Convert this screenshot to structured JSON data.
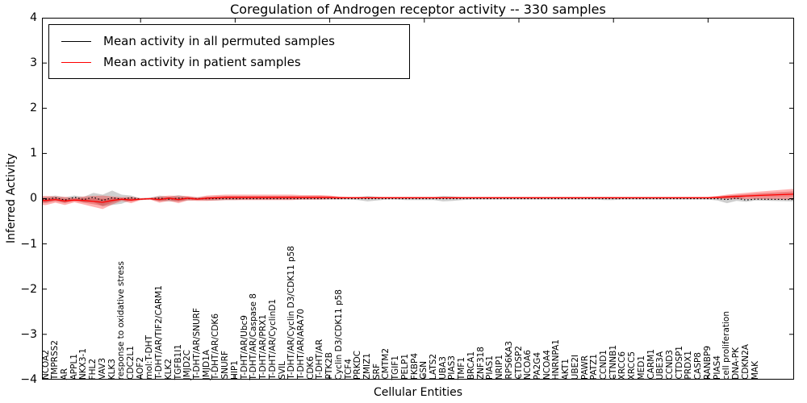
{
  "title": "Coregulation of Androgen receptor activity -- 330 samples",
  "legend": {
    "items": [
      {
        "label": "Mean activity in all permuted samples",
        "color": "#000000"
      },
      {
        "label": "Mean activity in patient samples",
        "color": "#ff0000"
      }
    ]
  },
  "yaxis": {
    "label": "Inferred Activity",
    "ticks": [
      {
        "v": 4,
        "label": "4"
      },
      {
        "v": 3,
        "label": "3"
      },
      {
        "v": 2,
        "label": "2"
      },
      {
        "v": 1,
        "label": "1"
      },
      {
        "v": 0,
        "label": "0"
      },
      {
        "v": -1,
        "label": "−1"
      },
      {
        "v": -2,
        "label": "−2"
      },
      {
        "v": -3,
        "label": "−3"
      },
      {
        "v": -4,
        "label": "−4"
      }
    ]
  },
  "xaxis": {
    "label": "Cellular Entities"
  },
  "colors": {
    "permuted_line": "#000000",
    "patient_line": "#ff0000",
    "patient_band": "#ff0000",
    "patient_band_inner": "#cc2222",
    "permuted_band": "#808080"
  },
  "chart_data": {
    "type": "line",
    "title": "Coregulation of Androgen receptor activity -- 330 samples",
    "xlabel": "Cellular Entities",
    "ylabel": "Inferred Activity",
    "ylim": [
      -4,
      4
    ],
    "grid": false,
    "legend_position": "upper left",
    "categories": [
      "NCOA2",
      "TMPRSS2",
      "AR",
      "APPL1",
      "NKX3-1",
      "FHL2",
      "VAV3",
      "KLK3",
      "response to oxidative stress",
      "CDC2L1",
      "AOF2",
      "mol:T-DHT",
      "T-DHT/AR/TIF2/CARM1",
      "KLK2",
      "TGFB1I1",
      "JMJD2C",
      "T-DHT/AR/SNURF",
      "JMJD1A",
      "T-DHT/AR/CDK6",
      "SNURF",
      "HIP1",
      "T-DHT/AR/Ubc9",
      "T-DHT/AR/Caspase 8",
      "T-DHT/AR/PRX1",
      "T-DHT/AR/CyclinD1",
      "SVIL",
      "T-DHT/AR/Cyclin D3/CDK11 p58",
      "T-DHT/AR/ARA70",
      "CDK6",
      "T-DHT/AR",
      "PTK2B",
      "Cyclin D3/CDK11 p58",
      "TCF4",
      "PRKDC",
      "ZMIZ1",
      "SRF",
      "CMTM2",
      "TGIF1",
      "PELP1",
      "FKBP4",
      "GSN",
      "LATS2",
      "UBA3",
      "PIAS3",
      "TMF1",
      "BRCA1",
      "ZNF318",
      "PIAS1",
      "NRIP1",
      "RPS6KA3",
      "CTDSP2",
      "NCOA6",
      "PA2G4",
      "NCOA4",
      "HNRNPA1",
      "AKT1",
      "UBE2I",
      "PAWR",
      "PATZ1",
      "CCND1",
      "CTNNB1",
      "XRCC6",
      "XRCC5",
      "MED1",
      "CARM1",
      "UBE3A",
      "CCND3",
      "CTDSP1",
      "PRDX1",
      "CASP8",
      "RANBP9",
      "PIAS4",
      "cell proliferation",
      "DNA-PK",
      "CDKN2A",
      "MAK"
    ],
    "series": [
      {
        "name": "Mean activity in all permuted samples",
        "color": "#000000",
        "style": "dotted",
        "values": [
          -0.02,
          0.02,
          -0.03,
          0.03,
          -0.02,
          0.03,
          -0.04,
          0.02,
          -0.01,
          0.02,
          -0.01,
          0,
          0.01,
          -0.01,
          0.01,
          0,
          0,
          0,
          0,
          0,
          0,
          0,
          0,
          0,
          0,
          0,
          0,
          0,
          0,
          0,
          0,
          0,
          0,
          0,
          0,
          0,
          0,
          0,
          0,
          0,
          0,
          0,
          0,
          0,
          0,
          0,
          0,
          0,
          0,
          0,
          0,
          0,
          0,
          0,
          0,
          0,
          0,
          0,
          0,
          0,
          0,
          0,
          0,
          0,
          0,
          0,
          0,
          0,
          0,
          0,
          0,
          0,
          -0.02,
          0.01,
          -0.03,
          -0.01
        ]
      },
      {
        "name": "Mean activity in patient samples",
        "color": "#ff0000",
        "style": "solid",
        "values": [
          -0.04,
          -0.02,
          -0.05,
          -0.03,
          -0.04,
          -0.06,
          -0.08,
          -0.04,
          -0.01,
          -0.03,
          -0.01,
          0,
          -0.02,
          0.01,
          -0.02,
          0.01,
          -0.01,
          0.01,
          0.02,
          0.03,
          0.03,
          0.03,
          0.03,
          0.03,
          0.03,
          0.03,
          0.03,
          0.03,
          0.03,
          0.03,
          0.03,
          0.02,
          0.02,
          0.02,
          0.02,
          0.02,
          0.02,
          0.02,
          0.02,
          0.02,
          0.02,
          0.02,
          0.02,
          0.02,
          0.02,
          0.02,
          0.02,
          0.02,
          0.02,
          0.02,
          0.02,
          0.02,
          0.02,
          0.02,
          0.02,
          0.02,
          0.02,
          0.02,
          0.02,
          0.02,
          0.02,
          0.02,
          0.02,
          0.02,
          0.02,
          0.02,
          0.02,
          0.02,
          0.02,
          0.02,
          0.02,
          0.03,
          0.04,
          0.05,
          0.06,
          0.07
        ]
      }
    ],
    "bands": [
      {
        "name": "patient std band",
        "color": "#ff0000",
        "center_series": 1,
        "half_widths": [
          0.1,
          0.07,
          0.09,
          0.05,
          0.09,
          0.12,
          0.15,
          0.09,
          0.04,
          0.07,
          0.02,
          0.02,
          0.07,
          0.06,
          0.08,
          0.05,
          0.04,
          0.06,
          0.06,
          0.06,
          0.06,
          0.06,
          0.06,
          0.06,
          0.06,
          0.06,
          0.06,
          0.05,
          0.05,
          0.05,
          0.04,
          0.03,
          0.02,
          0.02,
          0.02,
          0.02,
          0.02,
          0.02,
          0.02,
          0.02,
          0.02,
          0.02,
          0.02,
          0.02,
          0.02,
          0.02,
          0.02,
          0.02,
          0.02,
          0.02,
          0.02,
          0.02,
          0.02,
          0.02,
          0.02,
          0.02,
          0.02,
          0.02,
          0.02,
          0.02,
          0.02,
          0.02,
          0.02,
          0.02,
          0.02,
          0.02,
          0.02,
          0.02,
          0.02,
          0.02,
          0.02,
          0.03,
          0.05,
          0.06,
          0.07,
          0.08
        ]
      },
      {
        "name": "permuted std band",
        "color": "#808080",
        "center_series": 0,
        "half_widths": [
          0.06,
          0.05,
          0.06,
          0.04,
          0.06,
          0.1,
          0.13,
          0.16,
          0.1,
          0.05,
          0.02,
          0.02,
          0.06,
          0.05,
          0.07,
          0.04,
          0.03,
          0.04,
          0.04,
          0.03,
          0.03,
          0.02,
          0.02,
          0.02,
          0.02,
          0.02,
          0.02,
          0.02,
          0.02,
          0.02,
          0.02,
          0.02,
          0.02,
          0.03,
          0.06,
          0.04,
          0.02,
          0.02,
          0.03,
          0.03,
          0.03,
          0.03,
          0.06,
          0.05,
          0.03,
          0.02,
          0.02,
          0.02,
          0.02,
          0.02,
          0.02,
          0.02,
          0.02,
          0.02,
          0.02,
          0.02,
          0.02,
          0.02,
          0.02,
          0.03,
          0.03,
          0.02,
          0.02,
          0.02,
          0.02,
          0.02,
          0.02,
          0.02,
          0.02,
          0.02,
          0.02,
          0.04,
          0.08,
          0.06,
          0.04,
          0.03
        ]
      }
    ],
    "right_edge": {
      "patient_mean": 0.1,
      "patient_half": 0.12,
      "permuted_mean": -0.02,
      "permuted_half": 0.04
    },
    "xticks_every": 10
  }
}
